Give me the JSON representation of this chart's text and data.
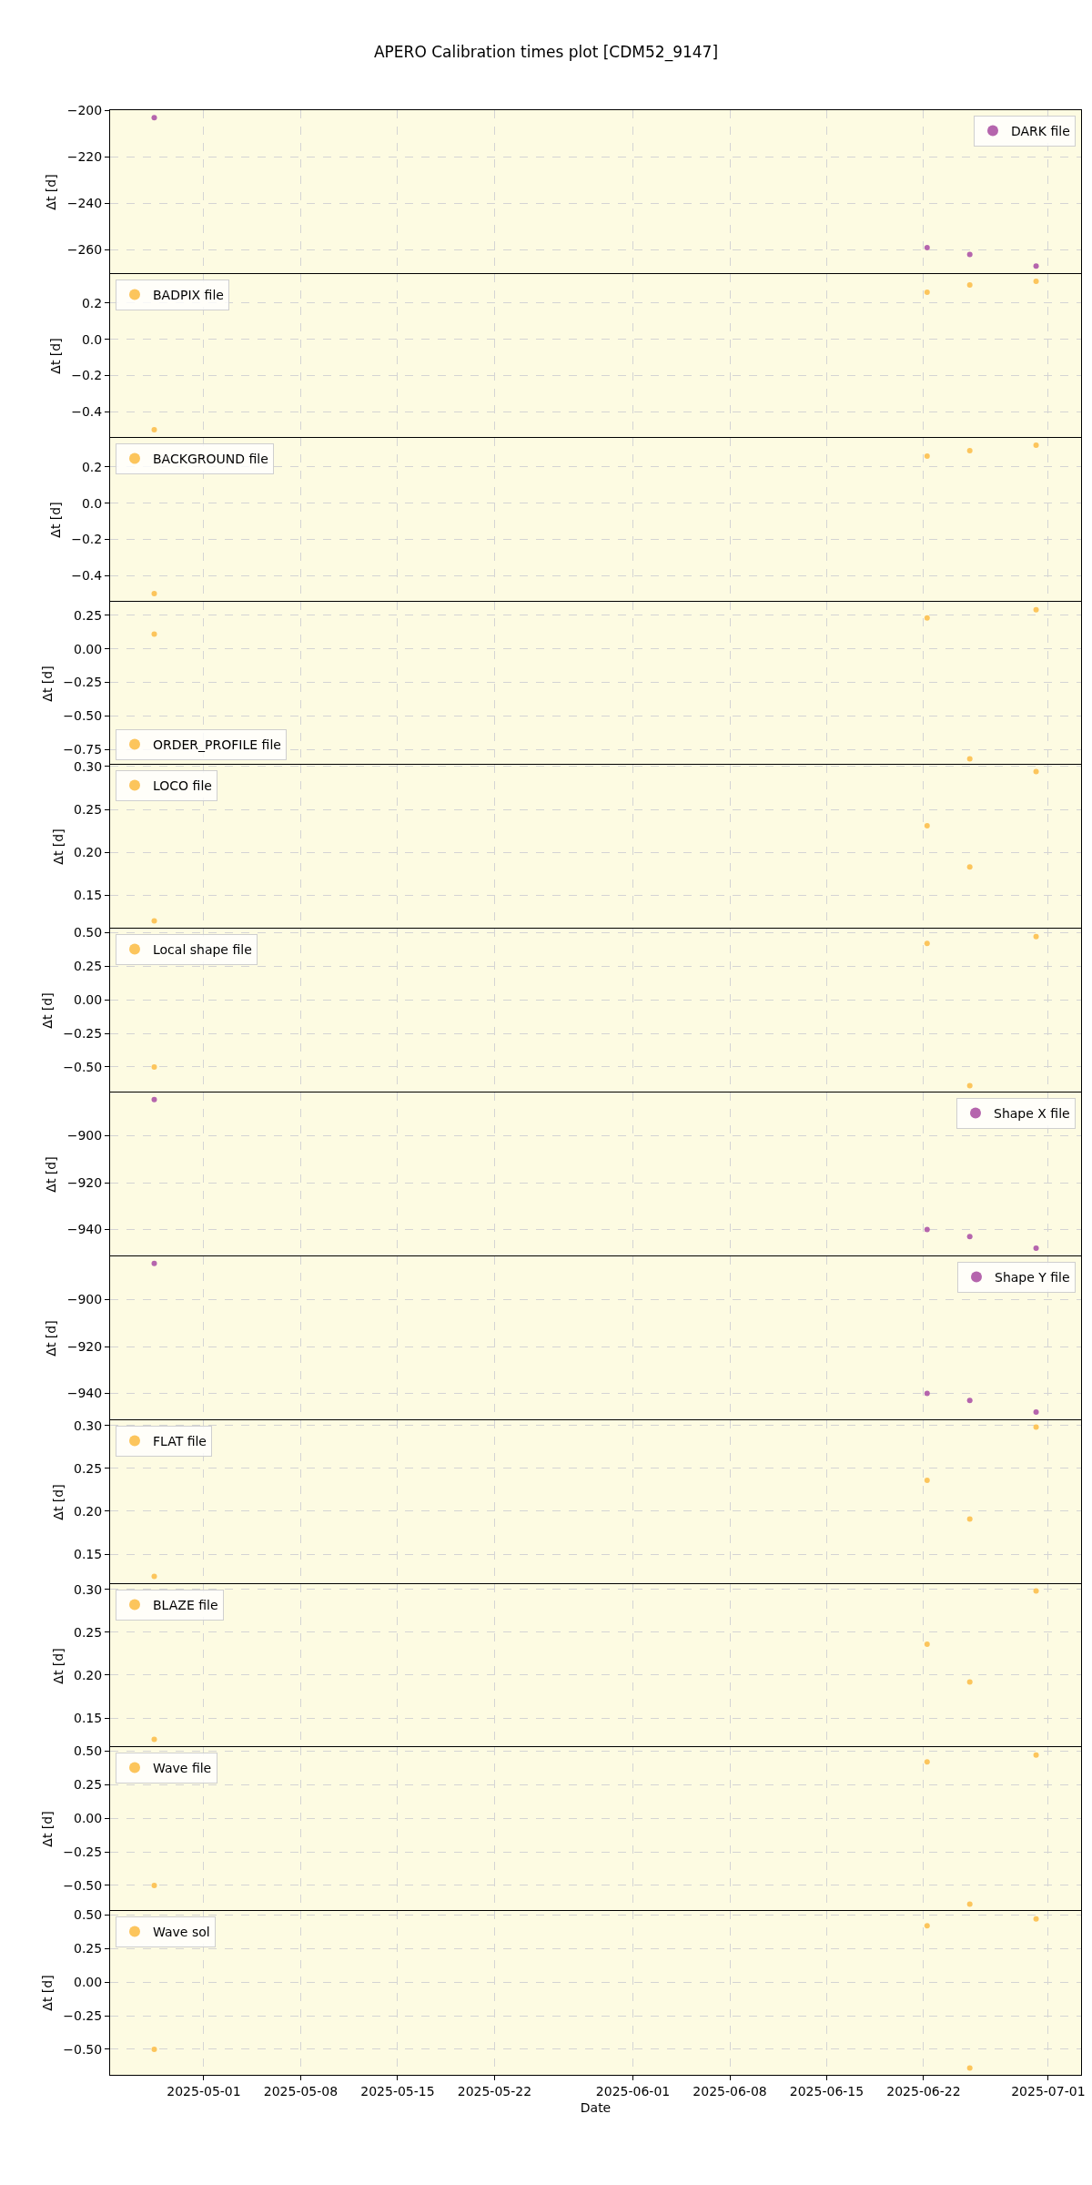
{
  "chart_data": [
    {
      "type": "scatter",
      "title": "APERO Calibration times plot [CDM52_9147]",
      "ylabel": "Δt [d]",
      "x": [
        "2025-04-27T10:00",
        "2025-06-22T06:00",
        "2025-06-25T08:00",
        "2025-06-30T03:00"
      ],
      "series": [
        {
          "name": "DARK file",
          "color": "#b565ad",
          "values": [
            -203,
            -259,
            -262,
            -267
          ]
        }
      ],
      "xlim": [
        "2025-04-24T05:30",
        "2025-07-03T09:00"
      ],
      "xticks": [
        "2025-05-01",
        "2025-05-08",
        "2025-05-15",
        "2025-05-22",
        "2025-06-01",
        "2025-06-08",
        "2025-06-15",
        "2025-06-22",
        "2025-07-01"
      ],
      "ylim": [
        -270.4,
        -199.8
      ],
      "yticks": [
        {
          "value": -260,
          "label": "−260"
        },
        {
          "value": -240,
          "label": "−240"
        },
        {
          "value": -220,
          "label": "−220"
        },
        {
          "value": -200,
          "label": "−200"
        }
      ],
      "grid": true,
      "legend": "top right",
      "marker": "circle",
      "tick_labels": "y"
    },
    {
      "type": "scatter",
      "ylabel": "Δt [d]",
      "x": [
        "2025-04-27T10:00",
        "2025-06-22T06:00",
        "2025-06-25T08:00",
        "2025-06-30T03:00"
      ],
      "series": [
        {
          "name": "BADPIX file",
          "color": "#fcc55c",
          "values": [
            -0.5,
            0.26,
            0.3,
            0.32
          ]
        }
      ],
      "xlim": [
        "2025-04-24T05:30",
        "2025-07-03T09:00"
      ],
      "xticks": [
        "2025-05-01",
        "2025-05-08",
        "2025-05-15",
        "2025-05-22",
        "2025-06-01",
        "2025-06-08",
        "2025-06-15",
        "2025-06-22",
        "2025-07-01"
      ],
      "ylim": [
        -0.545,
        0.36
      ],
      "yticks": [
        {
          "value": -0.4,
          "label": "−0.4"
        },
        {
          "value": -0.2,
          "label": "−0.2"
        },
        {
          "value": 0,
          "label": "0.0"
        },
        0.2
      ],
      "grid": true,
      "legend": "top left",
      "marker": "circle",
      "tick_labels": "y"
    },
    {
      "type": "scatter",
      "ylabel": "Δt [d]",
      "x": [
        "2025-04-27T10:00",
        "2025-06-22T06:00",
        "2025-06-25T08:00",
        "2025-06-30T03:00"
      ],
      "series": [
        {
          "name": "BACKGROUND file",
          "color": "#fcc55c",
          "values": [
            -0.5,
            0.26,
            0.29,
            0.32
          ]
        }
      ],
      "xlim": [
        "2025-04-24T05:30",
        "2025-07-03T09:00"
      ],
      "xticks": [
        "2025-05-01",
        "2025-05-08",
        "2025-05-15",
        "2025-05-22",
        "2025-06-01",
        "2025-06-08",
        "2025-06-15",
        "2025-06-22",
        "2025-07-01"
      ],
      "ylim": [
        -0.545,
        0.36
      ],
      "yticks": [
        {
          "value": -0.4,
          "label": "−0.4"
        },
        {
          "value": -0.2,
          "label": "−0.2"
        },
        {
          "value": 0,
          "label": "0.0"
        },
        0.2
      ],
      "grid": true,
      "legend": "top left",
      "marker": "circle",
      "tick_labels": "y"
    },
    {
      "type": "scatter",
      "ylabel": "Δt [d]",
      "x": [
        "2025-04-27T10:00",
        "2025-06-22T06:00",
        "2025-06-25T08:00",
        "2025-06-30T03:00"
      ],
      "series": [
        {
          "name": "ORDER_PROFILE file",
          "color": "#fcc55c",
          "values": [
            0.11,
            0.23,
            -0.82,
            0.29
          ]
        }
      ],
      "xlim": [
        "2025-04-24T05:30",
        "2025-07-03T09:00"
      ],
      "xticks": [
        "2025-05-01",
        "2025-05-08",
        "2025-05-15",
        "2025-05-22",
        "2025-06-01",
        "2025-06-08",
        "2025-06-15",
        "2025-06-22",
        "2025-07-01"
      ],
      "ylim": [
        -0.87,
        0.35
      ],
      "yticks": [
        {
          "value": -0.75,
          "label": "−0.75"
        },
        {
          "value": -0.5,
          "label": "−0.50"
        },
        {
          "value": -0.25,
          "label": "−0.25"
        },
        {
          "value": 0,
          "label": "0.00"
        },
        0.25
      ],
      "grid": true,
      "legend": "bottom left",
      "marker": "circle",
      "tick_labels": "y"
    },
    {
      "type": "scatter",
      "ylabel": "Δt [d]",
      "x": [
        "2025-04-27T10:00",
        "2025-06-22T06:00",
        "2025-06-25T08:00",
        "2025-06-30T03:00"
      ],
      "series": [
        {
          "name": "LOCO file",
          "color": "#fcc55c",
          "values": [
            0.12,
            0.231,
            0.183,
            0.294
          ]
        }
      ],
      "xlim": [
        "2025-04-24T05:30",
        "2025-07-03T09:00"
      ],
      "xticks": [
        "2025-05-01",
        "2025-05-08",
        "2025-05-15",
        "2025-05-22",
        "2025-06-01",
        "2025-06-08",
        "2025-06-15",
        "2025-06-22",
        "2025-07-01"
      ],
      "ylim": [
        0.111,
        0.302
      ],
      "yticks": [
        0.15,
        {
          "value": 0.2,
          "label": "0.20"
        },
        0.25,
        {
          "value": 0.3,
          "label": "0.30"
        }
      ],
      "grid": true,
      "legend": "top left",
      "marker": "circle",
      "tick_labels": "y"
    },
    {
      "type": "scatter",
      "ylabel": "Δt [d]",
      "x": [
        "2025-04-27T10:00",
        "2025-06-22T06:00",
        "2025-06-25T08:00",
        "2025-06-30T03:00"
      ],
      "series": [
        {
          "name": "Local shape file",
          "color": "#fcc55c",
          "values": [
            -0.5,
            0.42,
            -0.64,
            0.47
          ]
        }
      ],
      "xlim": [
        "2025-04-24T05:30",
        "2025-07-03T09:00"
      ],
      "xticks": [
        "2025-05-01",
        "2025-05-08",
        "2025-05-15",
        "2025-05-22",
        "2025-06-01",
        "2025-06-08",
        "2025-06-15",
        "2025-06-22",
        "2025-07-01"
      ],
      "ylim": [
        -0.69,
        0.53
      ],
      "yticks": [
        {
          "value": -0.5,
          "label": "−0.50"
        },
        {
          "value": -0.25,
          "label": "−0.25"
        },
        {
          "value": 0,
          "label": "0.00"
        },
        0.25,
        {
          "value": 0.5,
          "label": "0.50"
        }
      ],
      "grid": true,
      "legend": "top left",
      "marker": "circle",
      "tick_labels": "y"
    },
    {
      "type": "scatter",
      "ylabel": "Δt [d]",
      "x": [
        "2025-04-27T10:00",
        "2025-06-22T06:00",
        "2025-06-25T08:00",
        "2025-06-30T03:00"
      ],
      "series": [
        {
          "name": "Shape X file",
          "color": "#b565ad",
          "values": [
            -884.5,
            -940,
            -943,
            -948
          ]
        }
      ],
      "xlim": [
        "2025-04-24T05:30",
        "2025-07-03T09:00"
      ],
      "xticks": [
        "2025-05-01",
        "2025-05-08",
        "2025-05-15",
        "2025-05-22",
        "2025-06-01",
        "2025-06-08",
        "2025-06-15",
        "2025-06-22",
        "2025-07-01"
      ],
      "ylim": [
        -951.5,
        -881.5
      ],
      "yticks": [
        {
          "value": -940,
          "label": "−940"
        },
        {
          "value": -920,
          "label": "−920"
        },
        {
          "value": -900,
          "label": "−900"
        }
      ],
      "grid": true,
      "legend": "top right",
      "marker": "circle",
      "tick_labels": "y"
    },
    {
      "type": "scatter",
      "ylabel": "Δt [d]",
      "x": [
        "2025-04-27T10:00",
        "2025-06-22T06:00",
        "2025-06-25T08:00",
        "2025-06-30T03:00"
      ],
      "series": [
        {
          "name": "Shape Y file",
          "color": "#b565ad",
          "values": [
            -884.5,
            -940,
            -943,
            -948
          ]
        }
      ],
      "xlim": [
        "2025-04-24T05:30",
        "2025-07-03T09:00"
      ],
      "xticks": [
        "2025-05-01",
        "2025-05-08",
        "2025-05-15",
        "2025-05-22",
        "2025-06-01",
        "2025-06-08",
        "2025-06-15",
        "2025-06-22",
        "2025-07-01"
      ],
      "ylim": [
        -951.5,
        -881.5
      ],
      "yticks": [
        {
          "value": -940,
          "label": "−940"
        },
        {
          "value": -920,
          "label": "−920"
        },
        {
          "value": -900,
          "label": "−900"
        }
      ],
      "grid": true,
      "legend": "top right",
      "marker": "circle",
      "tick_labels": "y"
    },
    {
      "type": "scatter",
      "ylabel": "Δt [d]",
      "x": [
        "2025-04-27T10:00",
        "2025-06-22T06:00",
        "2025-06-25T08:00",
        "2025-06-30T03:00"
      ],
      "series": [
        {
          "name": "FLAT file",
          "color": "#fcc55c",
          "values": [
            0.124,
            0.236,
            0.191,
            0.298
          ]
        }
      ],
      "xlim": [
        "2025-04-24T05:30",
        "2025-07-03T09:00"
      ],
      "xticks": [
        "2025-05-01",
        "2025-05-08",
        "2025-05-15",
        "2025-05-22",
        "2025-06-01",
        "2025-06-08",
        "2025-06-15",
        "2025-06-22",
        "2025-07-01"
      ],
      "ylim": [
        0.115,
        0.306
      ],
      "yticks": [
        0.15,
        {
          "value": 0.2,
          "label": "0.20"
        },
        0.25,
        {
          "value": 0.3,
          "label": "0.30"
        }
      ],
      "grid": true,
      "legend": "top left",
      "marker": "circle",
      "tick_labels": "y"
    },
    {
      "type": "scatter",
      "ylabel": "Δt [d]",
      "x": [
        "2025-04-27T10:00",
        "2025-06-22T06:00",
        "2025-06-25T08:00",
        "2025-06-30T03:00"
      ],
      "series": [
        {
          "name": "BLAZE file",
          "color": "#fcc55c",
          "values": [
            0.125,
            0.236,
            0.192,
            0.298
          ]
        }
      ],
      "xlim": [
        "2025-04-24T05:30",
        "2025-07-03T09:00"
      ],
      "xticks": [
        "2025-05-01",
        "2025-05-08",
        "2025-05-15",
        "2025-05-22",
        "2025-06-01",
        "2025-06-08",
        "2025-06-15",
        "2025-06-22",
        "2025-07-01"
      ],
      "ylim": [
        0.115,
        0.306
      ],
      "yticks": [
        0.15,
        {
          "value": 0.2,
          "label": "0.20"
        },
        0.25,
        {
          "value": 0.3,
          "label": "0.30"
        }
      ],
      "grid": true,
      "legend": "top left",
      "marker": "circle",
      "tick_labels": "y"
    },
    {
      "type": "scatter",
      "ylabel": "Δt [d]",
      "x": [
        "2025-04-27T10:00",
        "2025-06-22T06:00",
        "2025-06-25T08:00",
        "2025-06-30T03:00"
      ],
      "series": [
        {
          "name": "Wave file",
          "color": "#fcc55c",
          "values": [
            -0.5,
            0.42,
            -0.64,
            0.47
          ]
        }
      ],
      "xlim": [
        "2025-04-24T05:30",
        "2025-07-03T09:00"
      ],
      "xticks": [
        "2025-05-01",
        "2025-05-08",
        "2025-05-15",
        "2025-05-22",
        "2025-06-01",
        "2025-06-08",
        "2025-06-15",
        "2025-06-22",
        "2025-07-01"
      ],
      "ylim": [
        -0.69,
        0.53
      ],
      "yticks": [
        {
          "value": -0.5,
          "label": "−0.50"
        },
        {
          "value": -0.25,
          "label": "−0.25"
        },
        {
          "value": 0,
          "label": "0.00"
        },
        0.25,
        {
          "value": 0.5,
          "label": "0.50"
        }
      ],
      "grid": true,
      "legend": "top left",
      "marker": "circle",
      "tick_labels": "y"
    },
    {
      "type": "scatter",
      "xlabel": "Date",
      "ylabel": "Δt [d]",
      "x": [
        "2025-04-27T10:00",
        "2025-06-22T06:00",
        "2025-06-25T08:00",
        "2025-06-30T03:00"
      ],
      "series": [
        {
          "name": "Wave sol",
          "color": "#fcc55c",
          "values": [
            -0.5,
            0.42,
            -0.64,
            0.47
          ]
        }
      ],
      "xlim": [
        "2025-04-24T05:30",
        "2025-07-03T09:00"
      ],
      "xticks": [
        "2025-05-01",
        "2025-05-08",
        "2025-05-15",
        "2025-05-22",
        "2025-06-01",
        "2025-06-08",
        "2025-06-15",
        "2025-06-22",
        "2025-07-01"
      ],
      "ylim": [
        -0.69,
        0.53
      ],
      "yticks": [
        {
          "value": -0.5,
          "label": "−0.50"
        },
        {
          "value": -0.25,
          "label": "−0.25"
        },
        {
          "value": 0,
          "label": "0.00"
        },
        0.25,
        {
          "value": 0.5,
          "label": "0.50"
        }
      ],
      "grid": true,
      "legend": "top left",
      "marker": "circle"
    }
  ]
}
